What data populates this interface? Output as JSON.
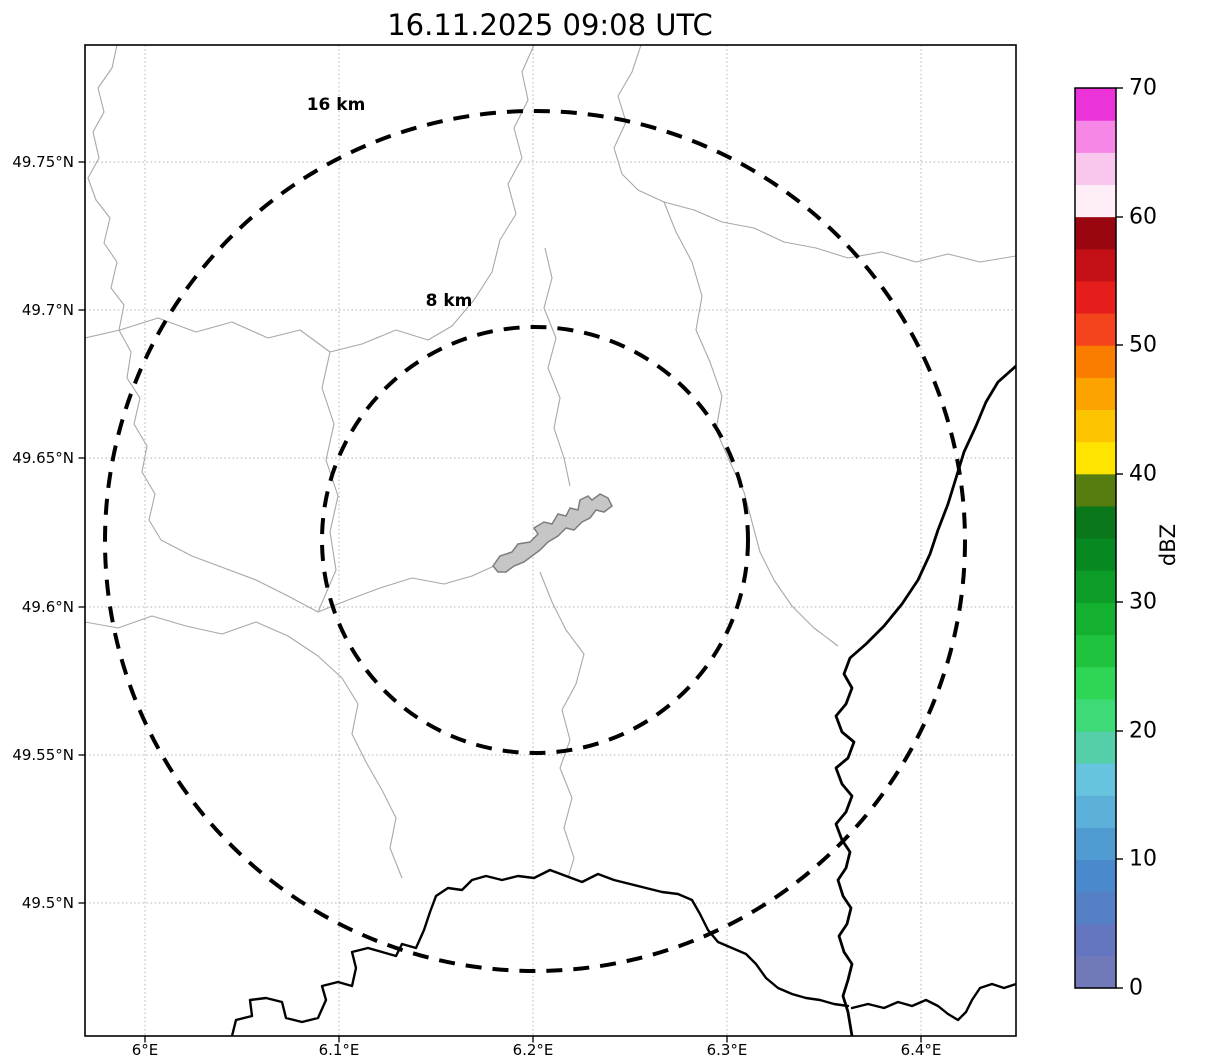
{
  "title": "16.11.2025 09:08 UTC",
  "map": {
    "y_tick_labels": [
      "49.75°N",
      "49.7°N",
      "49.65°N",
      "49.6°N",
      "49.55°N",
      "49.5°N"
    ],
    "x_tick_labels": [
      "6°E",
      "6.1°E",
      "6.2°E",
      "6.3°E",
      "6.4°E"
    ],
    "range_rings": [
      {
        "label": "16 km"
      },
      {
        "label": "8 km"
      }
    ],
    "city_fill": "#c6c6c6"
  },
  "colorbar": {
    "label": "dBZ",
    "min": 0,
    "max": 70,
    "tick_values": [
      0,
      10,
      20,
      30,
      40,
      50,
      60,
      70
    ],
    "colors_bottom_to_top": [
      "#7179b9",
      "#6376bf",
      "#5580c5",
      "#4a89cb",
      "#509bd2",
      "#5cb1da",
      "#67c4de",
      "#55cfa9",
      "#3eda76",
      "#2fd554",
      "#20c33e",
      "#14b02f",
      "#0d9c27",
      "#078820",
      "#0a781a",
      "#577d10",
      "#ffe400",
      "#fdc500",
      "#fca300",
      "#fb7d00",
      "#f4441e",
      "#e51e1c",
      "#c31016",
      "#99060f",
      "#fdeef8",
      "#f9c6ee",
      "#f687e6",
      "#ec32d9"
    ]
  }
}
